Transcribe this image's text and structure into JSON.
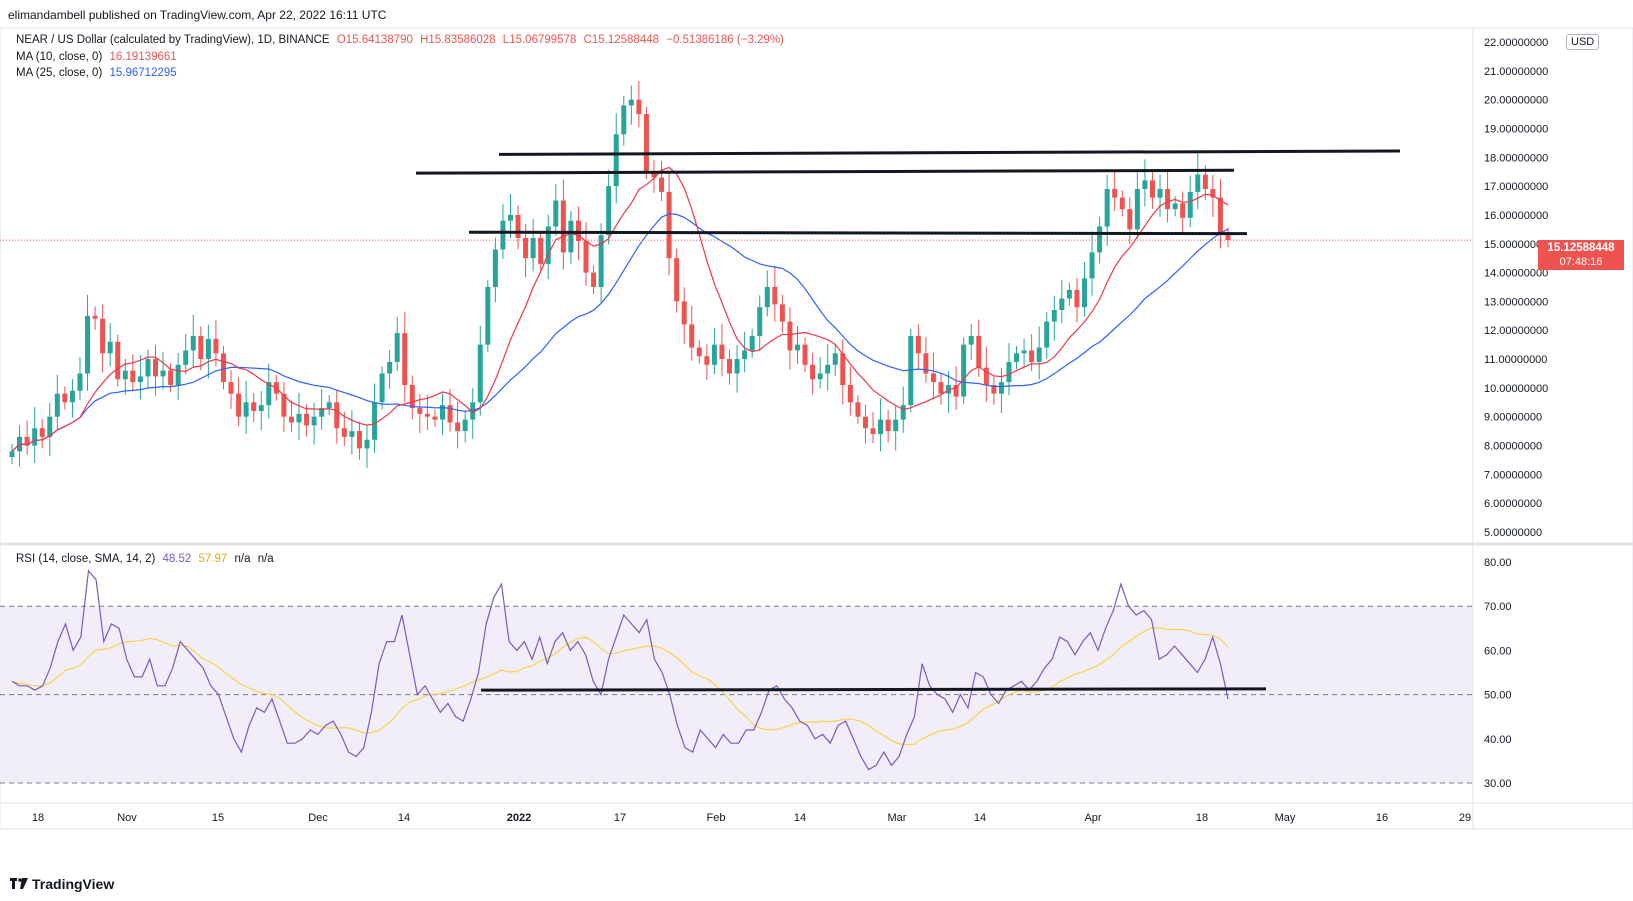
{
  "publisher_line": "elimandambell published on TradingView.com, Apr 22, 2022 16:11 UTC",
  "legend": {
    "symbol": "NEAR / US Dollar (calculated by TradingView), 1D, BINANCE",
    "open": "O15.64138790",
    "high": "H15.83586028",
    "low": "L15.06799578",
    "close": "C15.12588448",
    "change": "−0.51386186 (−3.29%)",
    "ma10_label": "MA (10, close, 0)",
    "ma10_value": "16.19139661",
    "ma25_label": "MA (25, close, 0)",
    "ma25_value": "15.96712295",
    "rsi_label": "RSI (14, close, SMA, 14, 2)",
    "rsi_value": "48.52",
    "rsi_sma_value": "57.97",
    "na1": "n/a",
    "na2": "n/a"
  },
  "currency_badge": "USD",
  "last_price_badge": {
    "price": "15.12588448",
    "countdown": "07:48:16"
  },
  "logo_text": "TradingView",
  "colors": {
    "up": "#26a69a",
    "down": "#ef5350",
    "ma10": "#f23645",
    "ma25": "#2962ff",
    "rsi": "#7e57c2",
    "rsi_sma": "#f5d547",
    "rsi_band": "#ede7f6",
    "trendline": "#131722"
  },
  "chart_data": [
    {
      "type": "candlestick",
      "title": "NEAR / US Dollar (calculated by TradingView), 1D, BINANCE",
      "ylim": [
        5,
        22
      ],
      "y_ticks": [
        "5.00000000",
        "6.00000000",
        "7.00000000",
        "8.00000000",
        "9.00000000",
        "10.00000000",
        "11.00000000",
        "12.00000000",
        "13.00000000",
        "14.00000000",
        "15.00000000",
        "16.00000000",
        "17.00000000",
        "18.00000000",
        "19.00000000",
        "20.00000000",
        "21.00000000",
        "22.00000000"
      ],
      "x_ticks": [
        "18",
        "Nov",
        "15",
        "Dec",
        "14",
        "2022",
        "17",
        "Feb",
        "14",
        "Mar",
        "14",
        "Apr",
        "18",
        "May",
        "16",
        "29"
      ],
      "close_series_approx": [
        7.8,
        8.3,
        8.0,
        8.6,
        8.3,
        9.0,
        9.8,
        9.5,
        9.9,
        10.5,
        12.5,
        12.4,
        11.2,
        11.6,
        10.3,
        10.6,
        10.2,
        10.4,
        11.0,
        10.4,
        10.6,
        10.1,
        10.8,
        11.3,
        11.8,
        11.0,
        11.7,
        11.2,
        10.2,
        9.8,
        9.0,
        9.5,
        9.2,
        9.4,
        10.2,
        9.8,
        9.0,
        8.8,
        9.1,
        8.7,
        9.0,
        9.3,
        9.5,
        8.6,
        8.3,
        8.5,
        7.9,
        8.2,
        9.5,
        10.5,
        10.9,
        11.9,
        10.1,
        9.3,
        9.1,
        9.0,
        8.9,
        9.4,
        8.8,
        8.5,
        8.9,
        9.5,
        11.5,
        13.5,
        14.8,
        15.8,
        16.0,
        15.2,
        14.5,
        15.2,
        14.3,
        15.6,
        16.5,
        14.7,
        15.8,
        15.1,
        14.0,
        13.5,
        15.3,
        17.0,
        18.8,
        19.8,
        20.0,
        19.5,
        17.5,
        17.3,
        16.8,
        14.5,
        13.0,
        12.2,
        11.4,
        11.1,
        10.8,
        11.5,
        11.0,
        10.5,
        11.0,
        11.3,
        11.8,
        12.8,
        13.5,
        12.9,
        12.3,
        11.3,
        11.5,
        10.8,
        10.3,
        10.5,
        10.8,
        11.2,
        10.1,
        9.5,
        9.0,
        8.6,
        8.4,
        8.9,
        8.5,
        8.9,
        9.4,
        11.8,
        11.2,
        10.5,
        10.2,
        9.8,
        10.1,
        9.7,
        11.5,
        11.8,
        10.7,
        10.1,
        9.8,
        10.2,
        10.9,
        11.2,
        11.3,
        10.9,
        11.4,
        12.3,
        12.7,
        13.1,
        13.4,
        12.8,
        13.8,
        14.7,
        15.6,
        16.9,
        16.6,
        16.2,
        15.5,
        16.9,
        17.2,
        16.6,
        16.9,
        16.2,
        16.4,
        15.9,
        16.8,
        17.4,
        16.9,
        16.6,
        15.3,
        15.13
      ],
      "ma10_last": 16.19139661,
      "ma25_last": 15.96712295,
      "last_price": 15.12588448,
      "horizontal_levels": [
        18.1,
        17.45,
        15.4
      ]
    },
    {
      "type": "line",
      "title": "RSI (14, close, SMA, 14, 2)",
      "ylim": [
        28,
        82
      ],
      "y_ticks": [
        "30.00",
        "40.00",
        "50.00",
        "60.00",
        "70.00",
        "80.00"
      ],
      "band": [
        30,
        70
      ],
      "midline": 50,
      "rsi_series_approx": [
        53,
        52,
        52,
        51,
        52,
        56,
        62,
        66,
        60,
        63,
        78,
        76,
        62,
        66,
        65,
        58,
        54,
        54,
        58,
        52,
        52,
        56,
        62,
        60,
        58,
        56,
        52,
        50,
        45,
        40,
        37,
        43,
        47,
        46,
        49,
        44,
        39,
        39,
        40,
        42,
        41,
        43,
        44,
        41,
        37,
        36,
        38,
        46,
        57,
        62,
        62,
        68,
        59,
        50,
        52,
        49,
        46,
        48,
        45,
        44,
        49,
        55,
        66,
        72,
        75,
        62,
        60,
        62,
        58,
        63,
        57,
        62,
        64,
        60,
        62,
        59,
        53,
        50,
        58,
        63,
        68,
        66,
        64,
        67,
        58,
        55,
        50,
        43,
        38,
        37,
        42,
        40,
        38,
        41,
        39,
        39,
        42,
        42,
        46,
        51,
        52,
        49,
        47,
        44,
        43,
        40,
        41,
        39,
        43,
        44,
        40,
        36,
        33,
        34,
        37,
        34,
        36,
        41,
        45,
        57,
        52,
        50,
        49,
        46,
        50,
        47,
        55,
        54,
        50,
        48,
        51,
        52,
        53,
        51,
        53,
        56,
        58,
        63,
        62,
        59,
        62,
        64,
        60,
        65,
        69,
        75,
        70,
        68,
        69,
        67,
        58,
        59,
        61,
        59,
        57,
        55,
        58,
        63,
        57,
        49
      ],
      "rsi_last": 48.52,
      "sma_last": 57.97,
      "horizontal_level": 51
    }
  ]
}
